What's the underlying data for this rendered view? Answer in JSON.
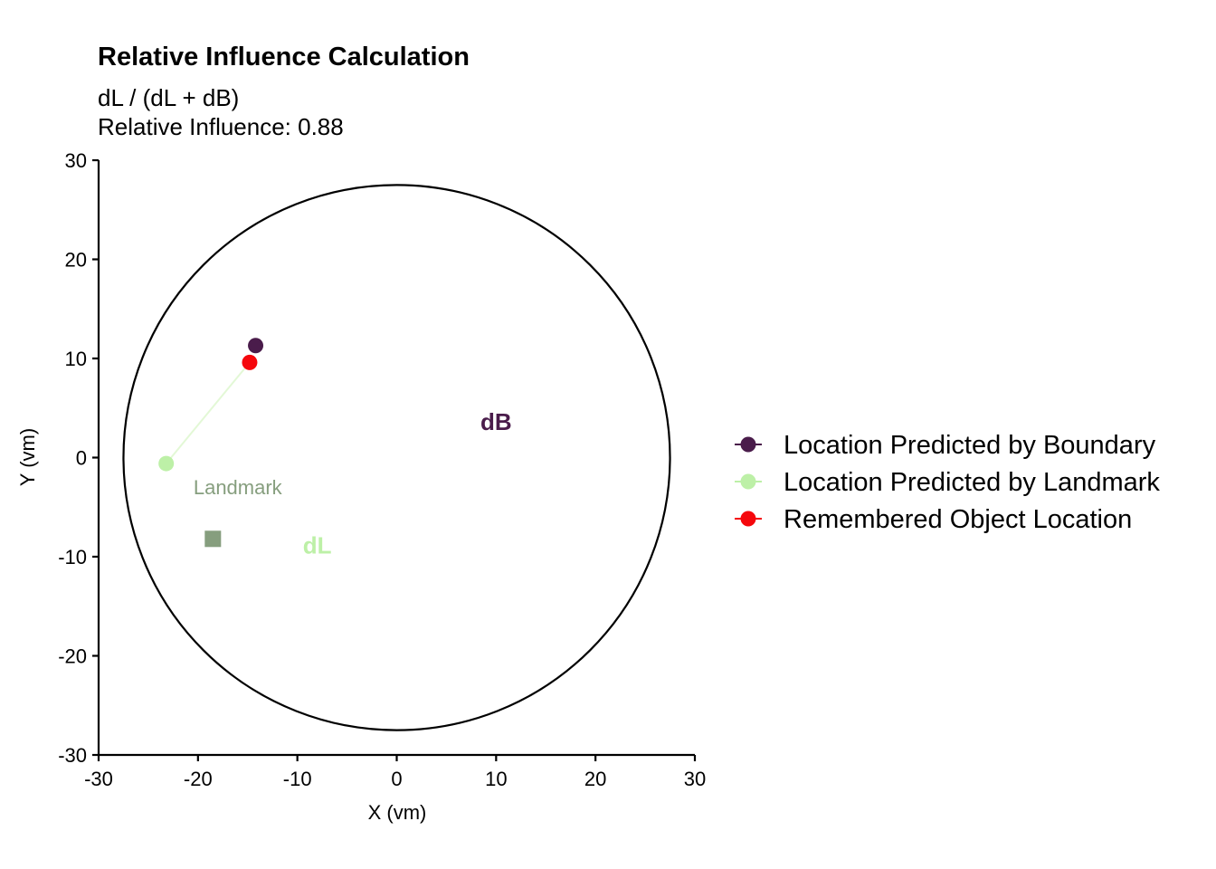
{
  "chart_data": {
    "type": "scatter",
    "title": "Relative Influence Calculation",
    "subtitle_line1": "dL / (dL + dB)",
    "subtitle_line2": "Relative Influence: 0.88",
    "xlabel": "X (vm)",
    "ylabel": "Y (vm)",
    "xlim": [
      -30,
      30
    ],
    "ylim": [
      -30,
      30
    ],
    "xticks": [
      -30,
      -20,
      -10,
      0,
      10,
      20,
      30
    ],
    "yticks": [
      -30,
      -20,
      -10,
      0,
      10,
      20,
      30
    ],
    "arena": {
      "center": [
        0,
        0
      ],
      "radius": 27.5
    },
    "landmark": {
      "x": -18.5,
      "y": -8.2,
      "label": "Landmark",
      "label_x": -16,
      "label_y": -3.7,
      "color": "#869E7E"
    },
    "segments": [
      {
        "from": [
          -23.2,
          -0.6
        ],
        "to": [
          -14.8,
          9.6
        ],
        "color": "#E3F8D6"
      }
    ],
    "series": [
      {
        "name": "Location Predicted by Boundary",
        "x": [
          -14.2
        ],
        "y": [
          11.3
        ],
        "color": "#4A1C4B"
      },
      {
        "name": "Location Predicted by Landmark",
        "x": [
          -23.2
        ],
        "y": [
          -0.6
        ],
        "color": "#BDF0A7"
      },
      {
        "name": "Remembered Object Location",
        "x": [
          -14.8
        ],
        "y": [
          9.6
        ],
        "color": "#F5070C"
      }
    ],
    "annotations": [
      {
        "text": "dB",
        "x": 10,
        "y": 2.8,
        "color": "#4A1C4B"
      },
      {
        "text": "dL",
        "x": -8,
        "y": -9.7,
        "color": "#BDF0A7"
      }
    ],
    "legend_position": "right"
  }
}
